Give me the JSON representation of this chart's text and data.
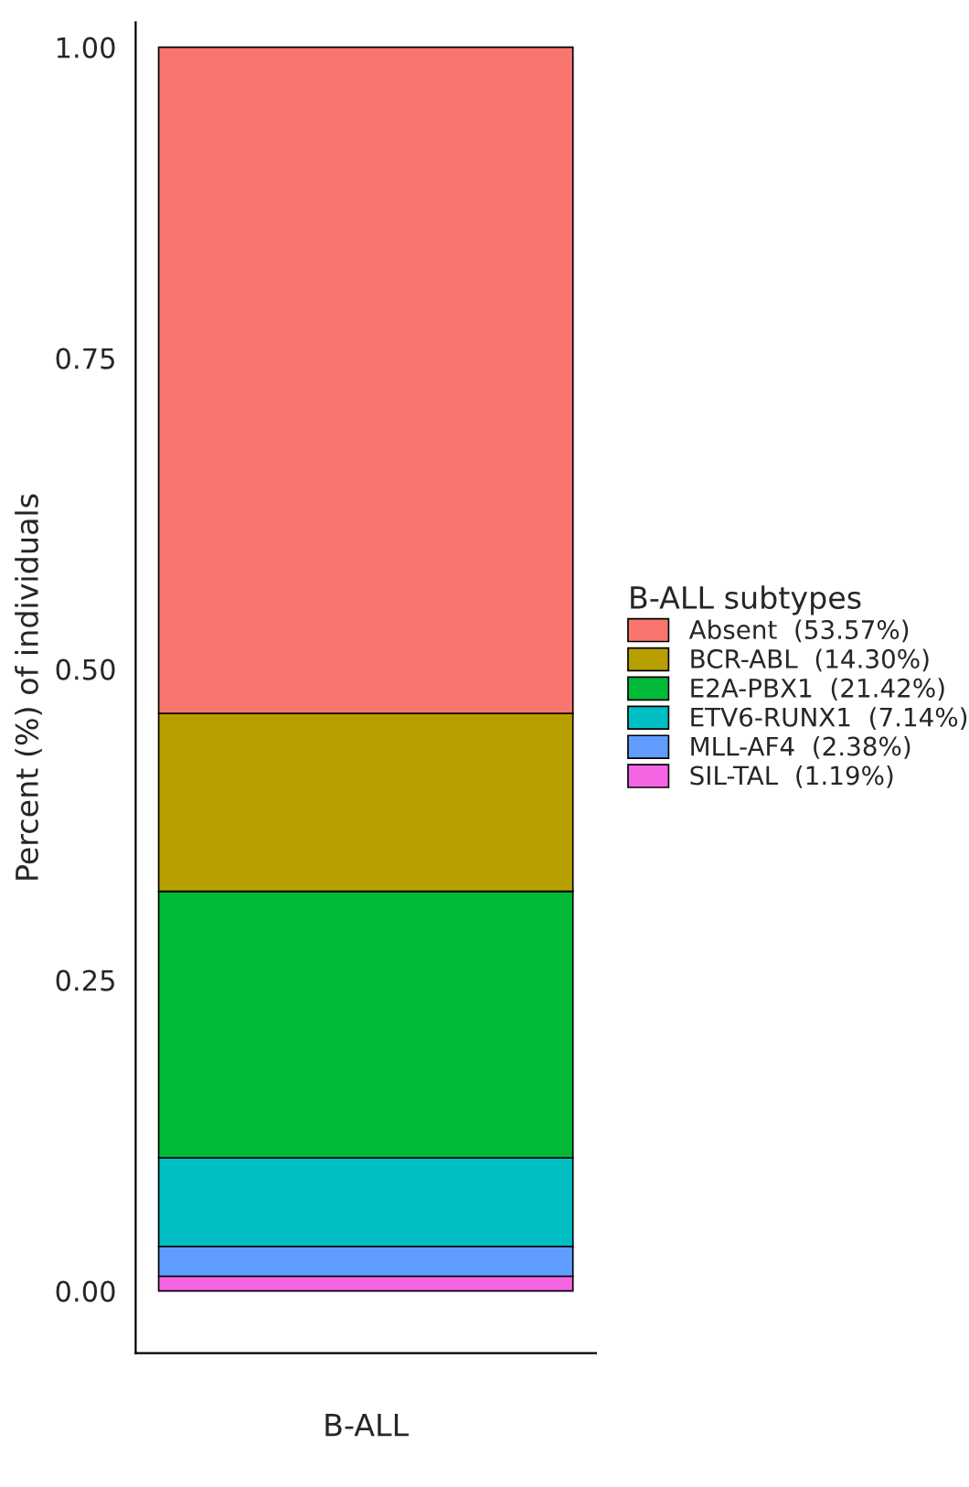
{
  "chart_data": {
    "type": "bar",
    "stacked": true,
    "xlabel": "B-ALL",
    "ylabel": "Percent (%) of individuals",
    "legend_title": "B-ALL subtypes",
    "legend": "right",
    "grid": false,
    "categories": [
      null
    ],
    "series": [
      {
        "name": "SIL-TAL  (1.19%)",
        "color": "#F564E3",
        "values": [
          0.0119
        ]
      },
      {
        "name": "MLL-AF4  (2.38%)",
        "color": "#619CFF",
        "values": [
          0.0238
        ]
      },
      {
        "name": "ETV6-RUNX1  (7.14%)",
        "color": "#00BFC4",
        "values": [
          0.0714
        ]
      },
      {
        "name": "E2A-PBX1  (21.42%)",
        "color": "#00BA38",
        "values": [
          0.2142
        ]
      },
      {
        "name": "BCR-ABL  (14.30%)",
        "color": "#B79F00",
        "values": [
          0.143
        ]
      },
      {
        "name": "Absent  (53.57%)",
        "color": "#F8766D",
        "values": [
          0.5357
        ]
      }
    ],
    "ylim": [
      -0.05,
      1.02
    ],
    "yticks": [
      {
        "value": 0,
        "label": "0.00"
      },
      {
        "value": 0.25,
        "label": "0.25"
      },
      {
        "value": 0.5,
        "label": "0.50"
      },
      {
        "value": 0.75,
        "label": "0.75"
      },
      {
        "value": 1,
        "label": "1.00"
      }
    ]
  }
}
